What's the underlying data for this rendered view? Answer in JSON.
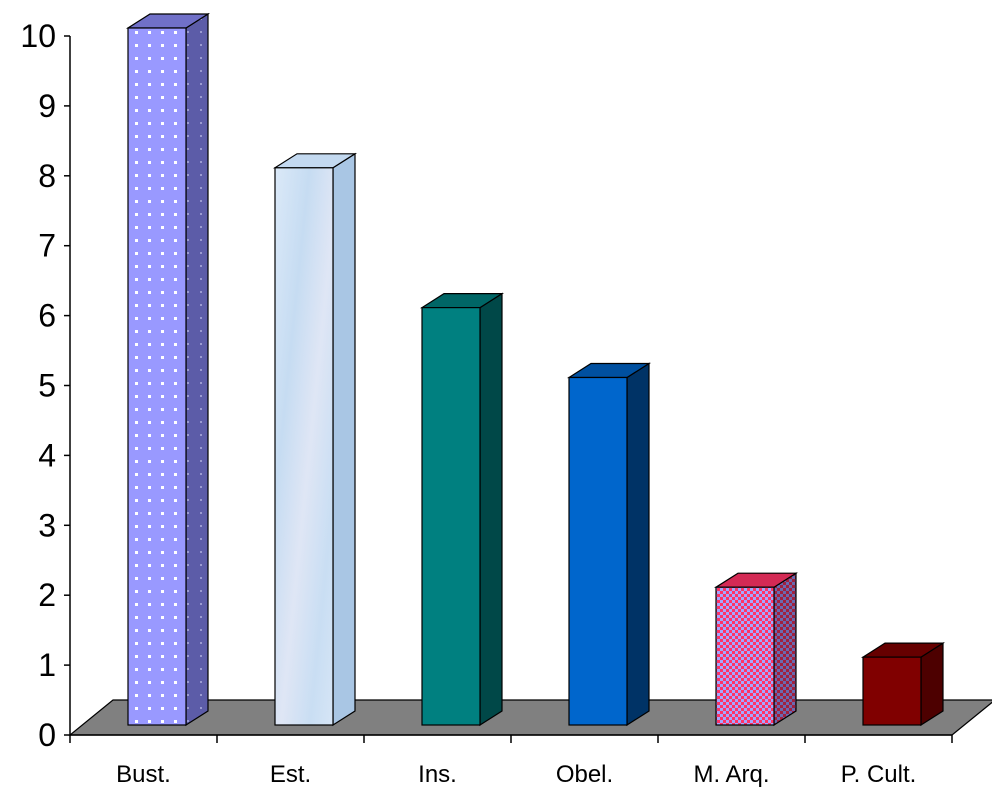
{
  "chart_data": {
    "type": "bar",
    "style": "3d-column",
    "categories": [
      "Bust.",
      "Est.",
      "Ins.",
      "Obel.",
      "M. Arq.",
      "P. Cult."
    ],
    "values": [
      10,
      8,
      6,
      5,
      2,
      1
    ],
    "ylim": [
      0,
      10
    ],
    "yticks": [
      "0",
      "1",
      "2",
      "3",
      "4",
      "5",
      "6",
      "7",
      "8",
      "9",
      "10"
    ],
    "grid": false,
    "legend": "none",
    "floor_color": "#808080",
    "bar_colors": [
      {
        "front": "#9999ff",
        "top": "#7070c8",
        "side": "#5c5ca8",
        "pattern": "dots"
      },
      {
        "front": "#d4e6f7",
        "top": "#c3d9f0",
        "side": "#a9c6e4",
        "pattern": "marble"
      },
      {
        "front": "#008080",
        "top": "#006666",
        "side": "#004848",
        "pattern": "none"
      },
      {
        "front": "#0066cc",
        "top": "#0050a0",
        "side": "#003366",
        "pattern": "none"
      },
      {
        "front": "#ff3366",
        "top": "#d42a55",
        "side": "#a0203f",
        "pattern": "checker"
      },
      {
        "front": "#800000",
        "top": "#660000",
        "side": "#4d0000",
        "pattern": "none"
      }
    ]
  }
}
